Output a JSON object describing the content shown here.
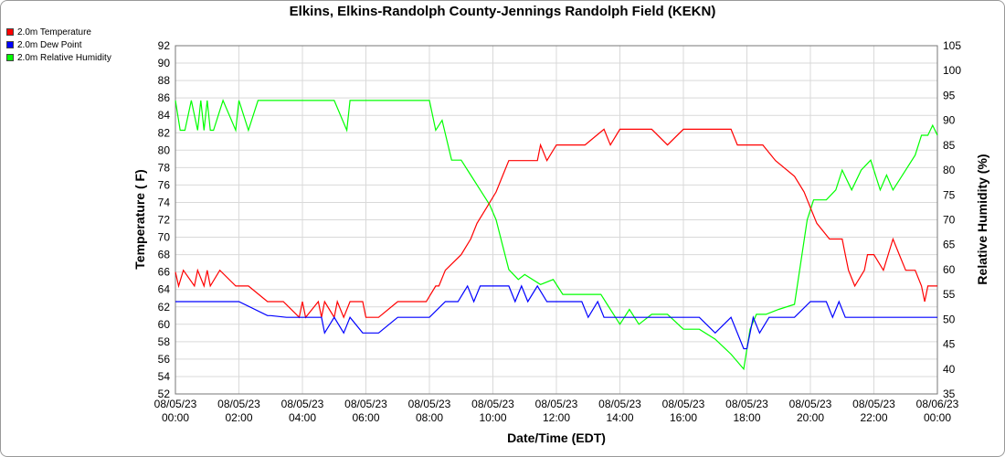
{
  "chart_data": {
    "type": "line",
    "title": "Elkins, Elkins-Randolph County-Jennings Randolph Field (KEKN)",
    "xlabel": "Date/Time (EDT)",
    "ylabel_left": "Temperature ( F)",
    "ylabel_right": "Relative Humidity (%)",
    "ylim_left": [
      52,
      92
    ],
    "ylim_right": [
      35,
      105
    ],
    "y_left_ticks": [
      "52",
      "54",
      "56",
      "58",
      "60",
      "62",
      "64",
      "66",
      "68",
      "70",
      "72",
      "74",
      "76",
      "78",
      "80",
      "82",
      "84",
      "86",
      "88",
      "90",
      "92"
    ],
    "y_right_ticks": [
      "35",
      "40",
      "45",
      "50",
      "55",
      "60",
      "65",
      "70",
      "75",
      "80",
      "85",
      "90",
      "95",
      "100",
      "105"
    ],
    "x_ticks": [
      {
        "date": "08/05/23",
        "time": "00:00",
        "hour": 0
      },
      {
        "date": "08/05/23",
        "time": "02:00",
        "hour": 2
      },
      {
        "date": "08/05/23",
        "time": "04:00",
        "hour": 4
      },
      {
        "date": "08/05/23",
        "time": "06:00",
        "hour": 6
      },
      {
        "date": "08/05/23",
        "time": "08:00",
        "hour": 8
      },
      {
        "date": "08/05/23",
        "time": "10:00",
        "hour": 10
      },
      {
        "date": "08/05/23",
        "time": "12:00",
        "hour": 12
      },
      {
        "date": "08/05/23",
        "time": "14:00",
        "hour": 14
      },
      {
        "date": "08/05/23",
        "time": "16:00",
        "hour": 16
      },
      {
        "date": "08/05/23",
        "time": "18:00",
        "hour": 18
      },
      {
        "date": "08/05/23",
        "time": "20:00",
        "hour": 20
      },
      {
        "date": "08/05/23",
        "time": "22:00",
        "hour": 22
      },
      {
        "date": "08/06/23",
        "time": "00:00",
        "hour": 24
      }
    ],
    "grid": true,
    "legend_position": "top-left",
    "series": [
      {
        "name": "2.0m Temperature",
        "axis": "left",
        "color": "#ff0000",
        "x": [
          0,
          0.1,
          0.25,
          0.6,
          0.7,
          0.9,
          1.0,
          1.1,
          1.4,
          1.9,
          2.0,
          2.3,
          2.9,
          3.0,
          3.4,
          3.9,
          4.0,
          4.1,
          4.5,
          4.6,
          4.7,
          5.0,
          5.1,
          5.3,
          5.5,
          5.9,
          6.0,
          6.4,
          7.0,
          7.2,
          7.9,
          8.2,
          8.3,
          8.5,
          9.0,
          9.3,
          9.5,
          9.8,
          10.1,
          10.3,
          10.5,
          10.7,
          11.0,
          11.4,
          11.5,
          11.7,
          12.0,
          12.4,
          12.9,
          13.5,
          13.7,
          14.0,
          14.4,
          15.0,
          15.5,
          16.0,
          16.5,
          17.0,
          17.5,
          17.7,
          18.0,
          18.5,
          18.9,
          19.5,
          19.8,
          20.0,
          20.2,
          20.6,
          21.0,
          21.1,
          21.2,
          21.4,
          21.7,
          21.8,
          22.0,
          22.3,
          22.6,
          22.8,
          23.0,
          23.3,
          23.5,
          23.6,
          23.7,
          23.8,
          24.0
        ],
        "y": [
          66,
          64.4,
          66.2,
          64.4,
          66.2,
          64.4,
          66.2,
          64.4,
          66.2,
          64.4,
          64.4,
          64.4,
          62.6,
          62.6,
          62.6,
          60.8,
          62.6,
          60.8,
          62.6,
          60.8,
          62.6,
          60.8,
          62.6,
          60.8,
          62.6,
          62.6,
          60.8,
          60.8,
          62.6,
          62.6,
          62.6,
          64.4,
          64.4,
          66.2,
          68,
          69.8,
          71.6,
          73.4,
          75.2,
          77,
          78.8,
          78.8,
          78.8,
          78.8,
          80.6,
          78.8,
          80.6,
          80.6,
          80.6,
          82.4,
          80.6,
          82.4,
          82.4,
          82.4,
          80.6,
          82.4,
          82.4,
          82.4,
          82.4,
          80.6,
          80.6,
          80.6,
          78.8,
          77,
          75.2,
          73.4,
          71.6,
          69.8,
          69.8,
          68,
          66.2,
          64.4,
          66.2,
          68,
          68,
          66.2,
          69.8,
          68,
          66.2,
          66.2,
          64.4,
          62.6,
          64.4,
          64.4,
          64.4
        ]
      },
      {
        "name": "2.0m Dew Point",
        "axis": "left",
        "color": "#0000ff",
        "x": [
          0,
          1.0,
          1.9,
          2.0,
          2.9,
          3.0,
          3.5,
          4.6,
          4.7,
          5.0,
          5.3,
          5.5,
          5.9,
          6.0,
          6.4,
          7.0,
          8.0,
          8.5,
          8.9,
          9.2,
          9.4,
          9.6,
          10.0,
          10.5,
          10.7,
          10.9,
          11.1,
          11.4,
          11.7,
          12.0,
          12.5,
          12.8,
          13.0,
          13.3,
          13.5,
          13.7,
          14.0,
          14.5,
          15.0,
          15.5,
          16.0,
          16.5,
          17.0,
          17.5,
          17.9,
          18.0,
          18.1,
          18.2,
          18.4,
          18.7,
          19.0,
          19.5,
          20.0,
          20.5,
          20.7,
          20.9,
          21.1,
          21.6,
          22.0,
          22.5,
          23.0,
          23.5,
          24.0
        ],
        "y": [
          62.6,
          62.6,
          62.6,
          62.6,
          61,
          61,
          60.8,
          60.8,
          59,
          60.8,
          59,
          60.8,
          59,
          59,
          59,
          60.8,
          60.8,
          62.6,
          62.6,
          64.4,
          62.6,
          64.4,
          64.4,
          64.4,
          62.6,
          64.4,
          62.6,
          64.4,
          62.6,
          62.6,
          62.6,
          62.6,
          60.8,
          62.6,
          60.8,
          60.8,
          60.8,
          60.8,
          60.8,
          60.8,
          60.8,
          60.8,
          59,
          60.8,
          57.2,
          57.2,
          59,
          60.8,
          59,
          60.8,
          60.8,
          60.8,
          62.6,
          62.6,
          60.8,
          62.6,
          60.8,
          60.8,
          60.8,
          60.8,
          60.8,
          60.8,
          60.8
        ]
      },
      {
        "name": "2.0m Relative Humidity",
        "axis": "right",
        "color": "#00ff00",
        "x": [
          0,
          0.15,
          0.3,
          0.5,
          0.7,
          0.8,
          0.9,
          1.0,
          1.1,
          1.2,
          1.5,
          1.9,
          2.0,
          2.3,
          2.6,
          2.9,
          3.2,
          5.0,
          5.4,
          5.5,
          5.8,
          6.3,
          6.5,
          6.8,
          7.2,
          7.9,
          8.0,
          8.2,
          8.4,
          8.7,
          9.0,
          9.3,
          9.6,
          9.9,
          10.1,
          10.3,
          10.5,
          10.8,
          11.0,
          11.5,
          11.9,
          12.2,
          12.6,
          13.0,
          13.4,
          13.6,
          14.0,
          14.3,
          14.6,
          15.0,
          15.5,
          16.0,
          16.5,
          17.0,
          17.5,
          17.9,
          18.1,
          18.3,
          18.6,
          19.0,
          19.5,
          19.9,
          20.1,
          20.5,
          20.8,
          21.0,
          21.3,
          21.6,
          21.9,
          22.2,
          22.4,
          22.6,
          23.0,
          23.3,
          23.5,
          23.7,
          23.85,
          24.0
        ],
        "y": [
          94,
          88,
          88,
          94,
          88,
          94,
          88,
          94,
          88,
          88,
          94,
          88,
          94,
          88,
          94,
          94,
          94,
          94,
          88,
          94,
          94,
          94,
          94,
          94,
          94,
          94,
          94,
          88,
          90,
          82,
          82,
          79,
          76,
          73,
          70,
          65,
          60,
          58,
          59,
          57,
          58,
          55,
          55,
          55,
          55,
          53,
          49,
          52,
          49,
          51,
          51,
          48,
          48,
          46,
          43,
          40,
          48,
          51,
          51,
          52,
          53,
          70,
          74,
          74,
          76,
          80,
          76,
          80,
          82,
          76,
          79,
          76,
          80,
          83,
          87,
          87,
          89,
          87
        ]
      }
    ]
  }
}
